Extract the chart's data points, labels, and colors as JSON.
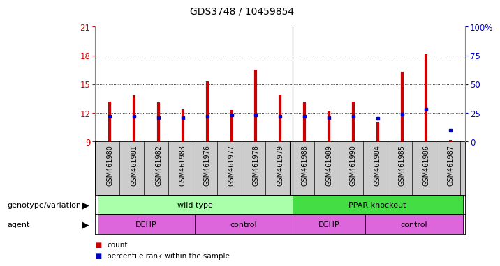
{
  "title": "GDS3748 / 10459854",
  "samples": [
    "GSM461980",
    "GSM461981",
    "GSM461982",
    "GSM461983",
    "GSM461976",
    "GSM461977",
    "GSM461978",
    "GSM461979",
    "GSM461988",
    "GSM461989",
    "GSM461990",
    "GSM461984",
    "GSM461985",
    "GSM461986",
    "GSM461987"
  ],
  "count_values": [
    13.2,
    13.8,
    13.1,
    12.4,
    15.3,
    12.3,
    16.5,
    13.9,
    13.1,
    12.2,
    13.2,
    11.1,
    16.3,
    18.1,
    9.2
  ],
  "percentile_values": [
    22,
    22,
    21,
    21,
    22,
    23,
    23,
    22,
    22,
    21,
    22,
    20,
    24,
    28,
    10
  ],
  "ylim_left": [
    9,
    21
  ],
  "ylim_right": [
    0,
    100
  ],
  "yticks_left": [
    9,
    12,
    15,
    18,
    21
  ],
  "yticks_right": [
    0,
    25,
    50,
    75,
    100
  ],
  "ytick_labels_right": [
    "0",
    "25",
    "50",
    "75",
    "100%"
  ],
  "bar_color": "#cc0000",
  "dot_color": "#0000cc",
  "background_color": "#ffffff",
  "genotype_color_light": "#aaffaa",
  "genotype_color_dark": "#44dd44",
  "agent_color": "#dd66dd",
  "tick_label_area_color": "#cccccc",
  "title_fontsize": 10,
  "axis_fontsize": 8,
  "tick_fontsize": 7,
  "label_fontsize": 8
}
